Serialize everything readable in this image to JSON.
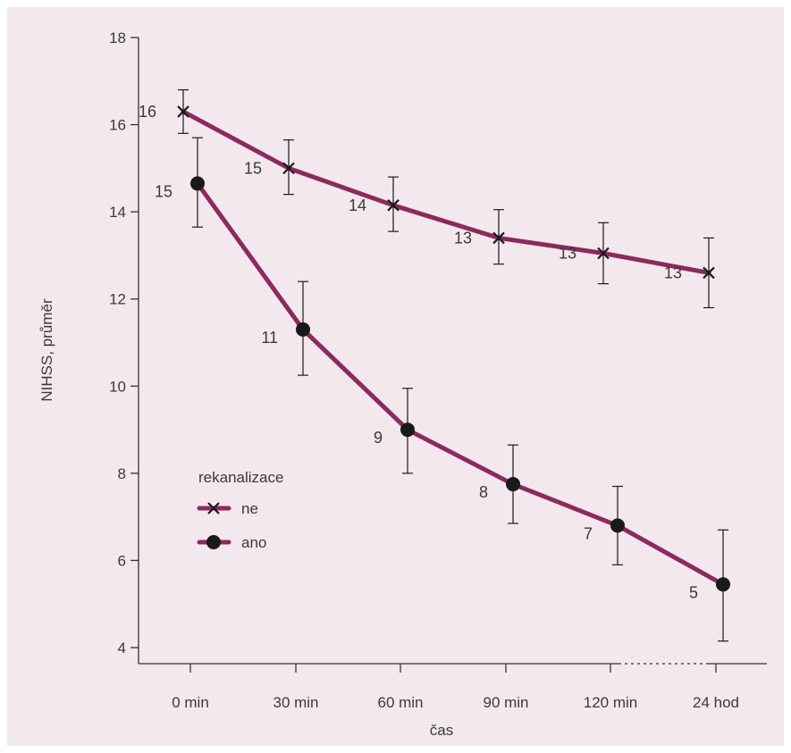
{
  "chart_data": {
    "type": "line",
    "title": "",
    "xlabel": "čas",
    "ylabel": "NIHSS, průměr",
    "categories": [
      "0 min",
      "30 min",
      "60 min",
      "90 min",
      "120 min",
      "24 hod"
    ],
    "ylim": [
      4,
      18
    ],
    "yticks": [
      4,
      6,
      8,
      10,
      12,
      14,
      16,
      18
    ],
    "grid": false,
    "legend": {
      "title": "rekanalizace",
      "placement": "center-left"
    },
    "series": [
      {
        "name": "ne",
        "marker": "x",
        "color": "#8c2a5e",
        "values": [
          16.3,
          15.0,
          14.15,
          13.4,
          13.05,
          12.6
        ],
        "error_low": [
          15.8,
          14.4,
          13.55,
          12.8,
          12.35,
          11.8
        ],
        "error_high": [
          16.8,
          15.65,
          14.8,
          14.05,
          13.75,
          13.4
        ],
        "labels": [
          "16",
          "15",
          "14",
          "13",
          "13",
          "13"
        ]
      },
      {
        "name": "ano",
        "marker": "circle",
        "color": "#8c2a5e",
        "values": [
          14.65,
          11.3,
          9.0,
          7.75,
          6.8,
          5.45
        ],
        "error_low": [
          13.65,
          10.25,
          8.0,
          6.85,
          5.9,
          4.15
        ],
        "error_high": [
          15.7,
          12.4,
          9.95,
          8.65,
          7.7,
          6.7
        ],
        "labels": [
          "15",
          "11",
          "9",
          "8",
          "7",
          "5"
        ]
      }
    ]
  }
}
